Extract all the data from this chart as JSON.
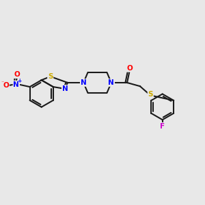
{
  "bg_color": "#e8e8e8",
  "bond_color": "#1a1a1a",
  "bond_width": 1.5,
  "atom_colors": {
    "N": "#0000ff",
    "O": "#ff0000",
    "S": "#ccaa00",
    "F": "#cc00cc",
    "C": "#1a1a1a"
  },
  "font_size_atom": 7.5,
  "fig_bg": "#e8e8e8",
  "xlim": [
    0,
    10
  ],
  "ylim": [
    0,
    10
  ]
}
